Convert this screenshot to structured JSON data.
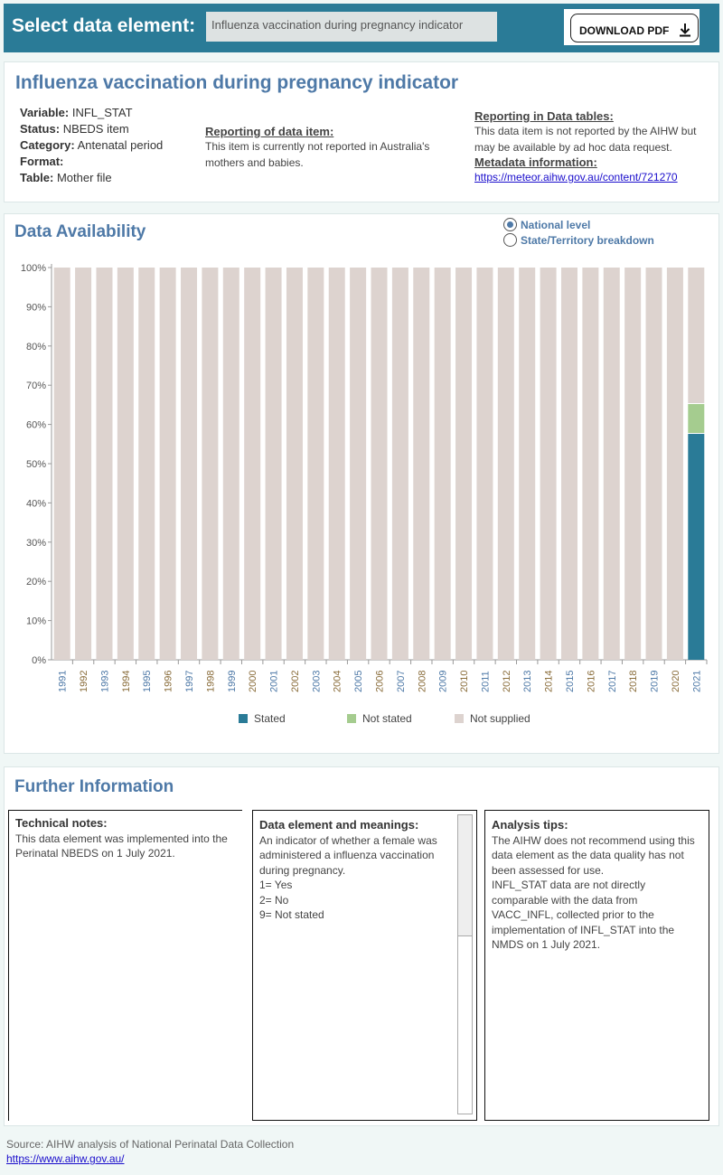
{
  "topbar": {
    "label": "Select data element:",
    "selected": "Influenza vaccination during pregnancy indicator",
    "download": "DOWNLOAD PDF"
  },
  "header": {
    "title": "Influenza vaccination during pregnancy indicator",
    "fields": [
      {
        "k": "Variable:",
        "v": "INFL_STAT"
      },
      {
        "k": "Status:",
        "v": "NBEDS item"
      },
      {
        "k": "Category:",
        "v": "Antenatal period"
      },
      {
        "k": "Format:",
        "v": ""
      },
      {
        "k": "Table:",
        "v": "Mother file"
      }
    ],
    "reporting_heading": "Reporting of data item:",
    "reporting_text": "This item is currently not reported in Australia's mothers and babies.",
    "tables_heading": "Reporting in Data tables:",
    "tables_text": "This data item is not reported by the AIHW but may be available by ad hoc data request.",
    "metadata_heading": "Metadata information:",
    "metadata_link": "https://meteor.aihw.gov.au/content/721270"
  },
  "availability": {
    "title": "Data Availability",
    "radio": [
      {
        "label": "National level",
        "selected": true
      },
      {
        "label": "State/Territory breakdown",
        "selected": false
      }
    ]
  },
  "chart_data": {
    "type": "bar",
    "stacked": true,
    "ylim": [
      0,
      100
    ],
    "yticks": [
      "0%",
      "10%",
      "20%",
      "30%",
      "40%",
      "50%",
      "60%",
      "70%",
      "80%",
      "90%",
      "100%"
    ],
    "categories": [
      "1991",
      "1992",
      "1993",
      "1994",
      "1995",
      "1996",
      "1997",
      "1998",
      "1999",
      "2000",
      "2001",
      "2002",
      "2003",
      "2004",
      "2005",
      "2006",
      "2007",
      "2008",
      "2009",
      "2010",
      "2011",
      "2012",
      "2013",
      "2014",
      "2015",
      "2016",
      "2017",
      "2018",
      "2019",
      "2020",
      "2021"
    ],
    "series": [
      {
        "name": "Stated",
        "color": "#2a7b97",
        "values": [
          0,
          0,
          0,
          0,
          0,
          0,
          0,
          0,
          0,
          0,
          0,
          0,
          0,
          0,
          0,
          0,
          0,
          0,
          0,
          0,
          0,
          0,
          0,
          0,
          0,
          0,
          0,
          0,
          0,
          0,
          57.6
        ]
      },
      {
        "name": "Not stated",
        "color": "#a5cc8f",
        "values": [
          0,
          0,
          0,
          0,
          0,
          0,
          0,
          0,
          0,
          0,
          0,
          0,
          0,
          0,
          0,
          0,
          0,
          0,
          0,
          0,
          0,
          0,
          0,
          0,
          0,
          0,
          0,
          0,
          0,
          0,
          7.6
        ]
      },
      {
        "name": "Not supplied",
        "color": "#ddd3cf",
        "values": [
          100,
          100,
          100,
          100,
          100,
          100,
          100,
          100,
          100,
          100,
          100,
          100,
          100,
          100,
          100,
          100,
          100,
          100,
          100,
          100,
          100,
          100,
          100,
          100,
          100,
          100,
          100,
          100,
          100,
          100,
          34.8
        ]
      }
    ],
    "legend": "bottom"
  },
  "further": {
    "title": "Further Information",
    "technical": {
      "heading": "Technical notes:",
      "lines": [
        "This data element was implemented into the Perinatal NBEDS on 1 July 2021."
      ]
    },
    "meanings": {
      "heading": "Data element and meanings:",
      "lines": [
        "An indicator of whether a female was administered a influenza vaccination during pregnancy.",
        "1= Yes",
        "2= No",
        "9= Not stated"
      ]
    },
    "tips": {
      "heading": "Analysis tips:",
      "lines": [
        "The AIHW does not recommend using this data element as the data quality has not been assessed for use.",
        "INFL_STAT data are not directly comparable with the data from VACC_INFL, collected prior to the implementation of INFL_STAT into the NMDS on 1 July 2021."
      ]
    }
  },
  "footer": {
    "source": "Source: AIHW analysis of National Perinatal Data Collection",
    "link": "https://www.aihw.gov.au/"
  }
}
